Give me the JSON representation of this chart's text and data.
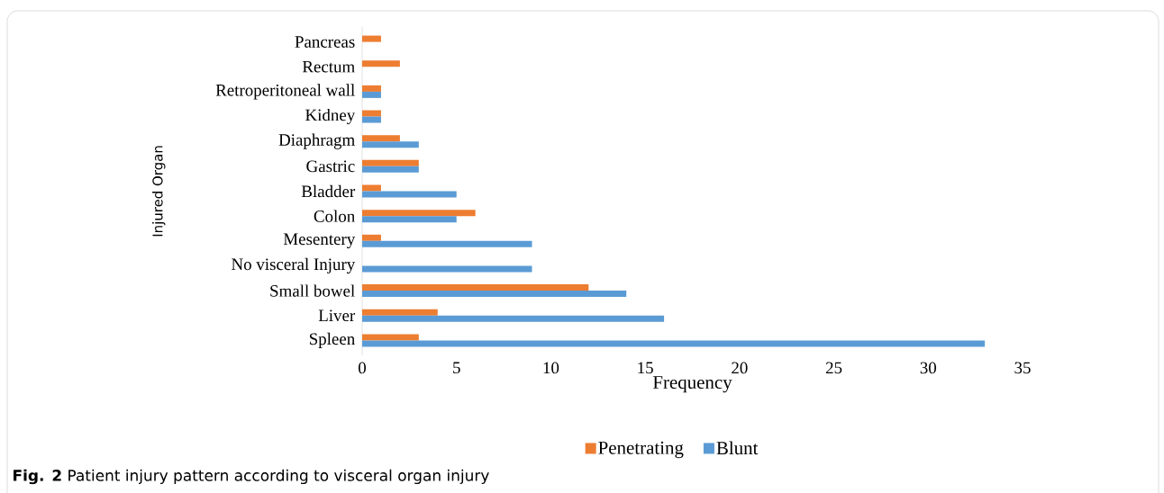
{
  "chart_data": {
    "type": "bar",
    "orientation": "horizontal",
    "xlabel": "Frequency",
    "ylabel": "Injured Organ",
    "categories": [
      "Pancreas",
      "Rectum",
      "Retroperitoneal wall",
      "Kidney",
      "Diaphragm",
      "Gastric",
      "Bladder",
      "Colon",
      "Mesentery",
      "No visceral Injury",
      "Small bowel",
      "Liver",
      "Spleen"
    ],
    "series": [
      {
        "name": "Penetrating",
        "color": "#ed7d31",
        "values": [
          1,
          2,
          1,
          1,
          2,
          3,
          1,
          6,
          1,
          null,
          12,
          4,
          3
        ]
      },
      {
        "name": "Blunt",
        "color": "#5b9bd5",
        "values": [
          null,
          null,
          1,
          1,
          3,
          3,
          5,
          5,
          9,
          9,
          14,
          16,
          33
        ]
      }
    ],
    "xlim": [
      0,
      35
    ],
    "xticks": [
      0,
      5,
      10,
      15,
      20,
      25,
      30,
      35
    ],
    "legend": "bottom",
    "annotations": [
      "**Fig. 2** Patient injury pattern according to visceral organ injury"
    ]
  }
}
